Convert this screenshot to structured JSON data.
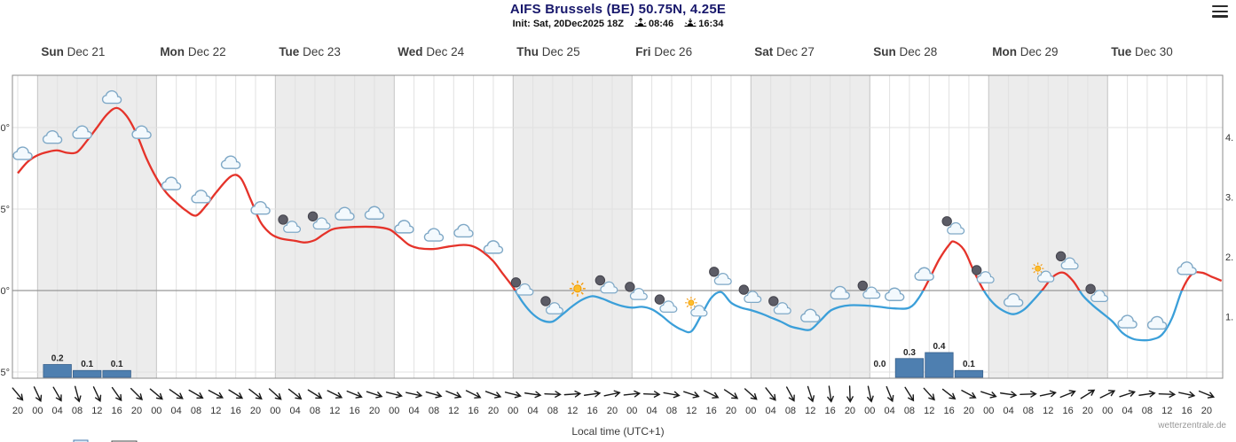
{
  "header": {
    "title": "AIFS Brussels (BE) 50.75N, 4.25E",
    "init_label": "Init: Sat, 20Dec2025 18Z",
    "sunrise_time": "08:46",
    "sunset_time": "16:34"
  },
  "footer": {
    "xlabel": "Local time (UTC+1)",
    "watermark": "wetterzentrale.de"
  },
  "axes": {
    "left": [
      {
        "text": "0°",
        "temp": 10
      },
      {
        "text": "5°",
        "temp": 5
      },
      {
        "text": "0°",
        "temp": 0
      },
      {
        "text": "5°",
        "temp": -5
      }
    ],
    "right": [
      {
        "text": "4.",
        "value": 4
      },
      {
        "text": "3.",
        "value": 3
      },
      {
        "text": "2.",
        "value": 2
      },
      {
        "text": "1.",
        "value": 1
      }
    ]
  },
  "days": [
    {
      "name": "Sun",
      "date": "Dec 21",
      "shaded": true
    },
    {
      "name": "Mon",
      "date": "Dec 22",
      "shaded": false
    },
    {
      "name": "Tue",
      "date": "Dec 23",
      "shaded": true
    },
    {
      "name": "Wed",
      "date": "Dec 24",
      "shaded": false
    },
    {
      "name": "Thu",
      "date": "Dec 25",
      "shaded": true
    },
    {
      "name": "Fri",
      "date": "Dec 26",
      "shaded": false
    },
    {
      "name": "Sat",
      "date": "Dec 27",
      "shaded": true
    },
    {
      "name": "Sun",
      "date": "Dec 28",
      "shaded": false
    },
    {
      "name": "Mon",
      "date": "Dec 29",
      "shaded": true
    },
    {
      "name": "Tue",
      "date": "Dec 30",
      "shaded": false
    }
  ],
  "chart_data": {
    "type": "line",
    "x_unit": "hours since Sat 20 Dec 20:00 local time",
    "time_label_start_hour": 20,
    "time_label_step_hours": 4,
    "time_label_end_t": 240,
    "t_end": 243,
    "temp_axis": {
      "ticks": [
        10,
        5,
        0,
        -5
      ],
      "zero_line": 0,
      "unit": "C"
    },
    "precip_axis": {
      "ticks": [
        4,
        3,
        2,
        1
      ],
      "unit": "mm"
    },
    "temperature_c": [
      [
        0,
        7.2
      ],
      [
        2,
        7.9
      ],
      [
        4,
        8.3
      ],
      [
        6,
        8.5
      ],
      [
        8,
        8.6
      ],
      [
        10,
        8.45
      ],
      [
        12,
        8.5
      ],
      [
        14,
        9.2
      ],
      [
        16,
        10.0
      ],
      [
        18,
        10.8
      ],
      [
        20,
        11.2
      ],
      [
        22,
        10.7
      ],
      [
        24,
        9.6
      ],
      [
        26,
        8.1
      ],
      [
        28,
        6.9
      ],
      [
        30,
        6.0
      ],
      [
        32,
        5.4
      ],
      [
        34,
        4.9
      ],
      [
        36,
        4.6
      ],
      [
        38,
        5.2
      ],
      [
        40,
        6.0
      ],
      [
        43,
        7.0
      ],
      [
        45,
        6.9
      ],
      [
        47,
        5.6
      ],
      [
        49,
        4.2
      ],
      [
        51,
        3.5
      ],
      [
        53,
        3.2
      ],
      [
        56,
        3.05
      ],
      [
        58,
        2.95
      ],
      [
        60,
        3.1
      ],
      [
        62,
        3.5
      ],
      [
        64,
        3.8
      ],
      [
        68,
        3.9
      ],
      [
        72,
        3.9
      ],
      [
        75,
        3.75
      ],
      [
        77,
        3.3
      ],
      [
        79,
        2.8
      ],
      [
        81,
        2.6
      ],
      [
        84,
        2.55
      ],
      [
        87,
        2.7
      ],
      [
        90,
        2.8
      ],
      [
        92,
        2.7
      ],
      [
        94,
        2.35
      ],
      [
        96,
        1.8
      ],
      [
        98,
        1.0
      ],
      [
        100,
        0.2
      ],
      [
        102,
        -0.75
      ],
      [
        104,
        -1.45
      ],
      [
        106,
        -1.85
      ],
      [
        108,
        -1.9
      ],
      [
        110,
        -1.45
      ],
      [
        112,
        -0.95
      ],
      [
        114,
        -0.55
      ],
      [
        116,
        -0.35
      ],
      [
        118,
        -0.5
      ],
      [
        120,
        -0.75
      ],
      [
        122,
        -0.95
      ],
      [
        124,
        -1.05
      ],
      [
        126,
        -1.0
      ],
      [
        128,
        -1.15
      ],
      [
        130,
        -1.55
      ],
      [
        132,
        -2.05
      ],
      [
        134,
        -2.4
      ],
      [
        136,
        -2.5
      ],
      [
        138,
        -1.5
      ],
      [
        140,
        -0.45
      ],
      [
        142,
        -0.1
      ],
      [
        144,
        -0.75
      ],
      [
        146,
        -1.05
      ],
      [
        148,
        -1.2
      ],
      [
        150,
        -1.4
      ],
      [
        152,
        -1.65
      ],
      [
        154,
        -1.9
      ],
      [
        156,
        -2.2
      ],
      [
        158,
        -2.35
      ],
      [
        160,
        -2.4
      ],
      [
        162,
        -1.85
      ],
      [
        164,
        -1.25
      ],
      [
        166,
        -1.0
      ],
      [
        168,
        -0.9
      ],
      [
        171,
        -0.92
      ],
      [
        174,
        -1.0
      ],
      [
        177,
        -1.1
      ],
      [
        180,
        -1.05
      ],
      [
        182,
        -0.4
      ],
      [
        184,
        0.7
      ],
      [
        186,
        1.9
      ],
      [
        188,
        2.8
      ],
      [
        189,
        3.0
      ],
      [
        191,
        2.5
      ],
      [
        193,
        1.2
      ],
      [
        195,
        0.0
      ],
      [
        197,
        -0.8
      ],
      [
        199,
        -1.25
      ],
      [
        201,
        -1.45
      ],
      [
        203,
        -1.2
      ],
      [
        205,
        -0.6
      ],
      [
        207,
        0.1
      ],
      [
        209,
        0.85
      ],
      [
        211,
        1.1
      ],
      [
        213,
        0.6
      ],
      [
        215,
        -0.3
      ],
      [
        217,
        -0.9
      ],
      [
        219,
        -1.4
      ],
      [
        221,
        -1.9
      ],
      [
        223,
        -2.6
      ],
      [
        225,
        -2.95
      ],
      [
        227,
        -3.05
      ],
      [
        229,
        -3.0
      ],
      [
        231,
        -2.7
      ],
      [
        233,
        -1.7
      ],
      [
        235,
        0.0
      ],
      [
        237,
        1.0
      ],
      [
        239,
        1.1
      ],
      [
        241,
        0.85
      ],
      [
        243,
        0.6
      ]
    ],
    "icons": [
      {
        "t": 1,
        "type": "cloud"
      },
      {
        "t": 7,
        "type": "cloud"
      },
      {
        "t": 13,
        "type": "cloud"
      },
      {
        "t": 19,
        "type": "cloud"
      },
      {
        "t": 25,
        "type": "cloud"
      },
      {
        "t": 31,
        "type": "cloud"
      },
      {
        "t": 37,
        "type": "cloud"
      },
      {
        "t": 43,
        "type": "cloud"
      },
      {
        "t": 49,
        "type": "cloud"
      },
      {
        "t": 55,
        "type": "mooncloud"
      },
      {
        "t": 61,
        "type": "mooncloud"
      },
      {
        "t": 66,
        "type": "cloud"
      },
      {
        "t": 72,
        "type": "cloud"
      },
      {
        "t": 78,
        "type": "cloud"
      },
      {
        "t": 84,
        "type": "cloud"
      },
      {
        "t": 90,
        "type": "cloud"
      },
      {
        "t": 96,
        "type": "cloud"
      },
      {
        "t": 102,
        "type": "mooncloud"
      },
      {
        "t": 108,
        "type": "mooncloud"
      },
      {
        "t": 113,
        "type": "sun"
      },
      {
        "t": 119,
        "type": "mooncloud"
      },
      {
        "t": 125,
        "type": "mooncloud"
      },
      {
        "t": 131,
        "type": "mooncloud"
      },
      {
        "t": 137,
        "type": "suncloud"
      },
      {
        "t": 142,
        "type": "mooncloud"
      },
      {
        "t": 148,
        "type": "mooncloud"
      },
      {
        "t": 154,
        "type": "mooncloud"
      },
      {
        "t": 160,
        "type": "cloud"
      },
      {
        "t": 166,
        "type": "cloud"
      },
      {
        "t": 172,
        "type": "mooncloud"
      },
      {
        "t": 177,
        "type": "cloud"
      },
      {
        "t": 183,
        "type": "cloud"
      },
      {
        "t": 189,
        "type": "mooncloud"
      },
      {
        "t": 195,
        "type": "mooncloud"
      },
      {
        "t": 201,
        "type": "cloud"
      },
      {
        "t": 207,
        "type": "suncloud"
      },
      {
        "t": 212,
        "type": "mooncloud"
      },
      {
        "t": 218,
        "type": "mooncloud"
      },
      {
        "t": 224,
        "type": "cloud"
      },
      {
        "t": 230,
        "type": "cloud"
      },
      {
        "t": 236,
        "type": "cloud"
      }
    ],
    "precip_bars": [
      {
        "t0": 5,
        "t1": 11,
        "mm": 0.2
      },
      {
        "t0": 11,
        "t1": 17,
        "mm": 0.1
      },
      {
        "t0": 17,
        "t1": 23,
        "mm": 0.1
      },
      {
        "t0": 171,
        "t1": 177,
        "mm": 0.0
      },
      {
        "t0": 177,
        "t1": 183,
        "mm": 0.3
      },
      {
        "t0": 183,
        "t1": 189,
        "mm": 0.4
      },
      {
        "t0": 189,
        "t1": 195,
        "mm": 0.1
      }
    ],
    "wind_dirs_deg": [
      140,
      155,
      150,
      165,
      155,
      145,
      135,
      130,
      125,
      120,
      118,
      122,
      128,
      132,
      128,
      122,
      116,
      112,
      108,
      104,
      102,
      106,
      112,
      116,
      110,
      104,
      98,
      92,
      86,
      82,
      78,
      84,
      92,
      100,
      108,
      116,
      124,
      132,
      142,
      152,
      162,
      172,
      178,
      168,
      158,
      148,
      138,
      128,
      118,
      108,
      98,
      88,
      78,
      68,
      58,
      64,
      72,
      82,
      92,
      102,
      112
    ],
    "colors": {
      "warm": "#e5332a",
      "cold": "#3b9fd9",
      "bar": "#4e7fb0",
      "band": "#ececec"
    }
  }
}
